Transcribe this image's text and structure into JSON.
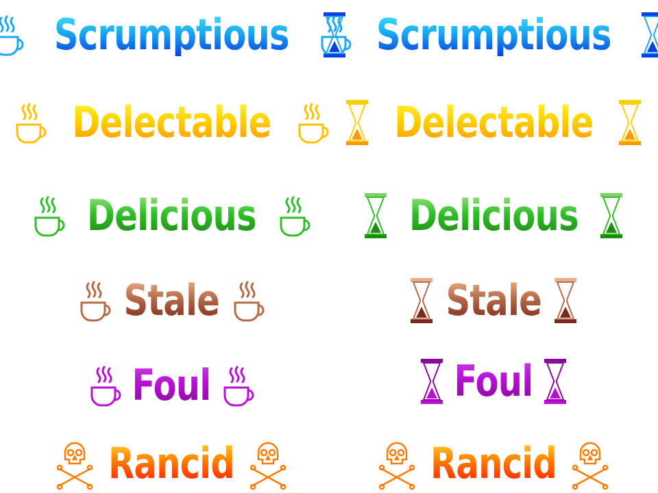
{
  "rows": [
    {
      "word": "Scrumptious",
      "scheme": "blue",
      "left_icon": "coffee-cup-icon",
      "right_icon": "hourglass-icon",
      "colors": {
        "light": "#3fe0ff",
        "mid": "#1aa8f0",
        "dark": "#0a3fe0"
      }
    },
    {
      "word": "Delectable",
      "scheme": "yellow",
      "left_icon": "coffee-cup-icon",
      "right_icon": "hourglass-icon",
      "colors": {
        "light": "#fff23a",
        "mid": "#ffd000",
        "dark": "#ff9a00"
      }
    },
    {
      "word": "Delicious",
      "scheme": "green",
      "left_icon": "coffee-cup-icon",
      "right_icon": "hourglass-icon",
      "colors": {
        "light": "#9be27c",
        "mid": "#2fbf2a",
        "dark": "#1f8a14"
      }
    },
    {
      "word": "Stale",
      "scheme": "brown",
      "left_icon": "coffee-cup-icon",
      "right_icon": "hourglass-icon",
      "colors": {
        "light": "#e8b08a",
        "mid": "#b56a48",
        "dark": "#7a2a1a"
      }
    },
    {
      "word": "Foul",
      "scheme": "purple",
      "left_icon": "coffee-cup-icon",
      "right_icon": "hourglass-icon",
      "colors": {
        "light": "#c83be0",
        "mid": "#b80fd6",
        "dark": "#8a0a9a"
      }
    },
    {
      "word": "Rancid",
      "scheme": "orange",
      "left_icon": "skull-crossbones-icon",
      "right_icon": "skull-crossbones-icon",
      "colors": {
        "light": "#ffcf2a",
        "mid": "#ff7a00",
        "dark": "#ff1a00"
      }
    }
  ]
}
